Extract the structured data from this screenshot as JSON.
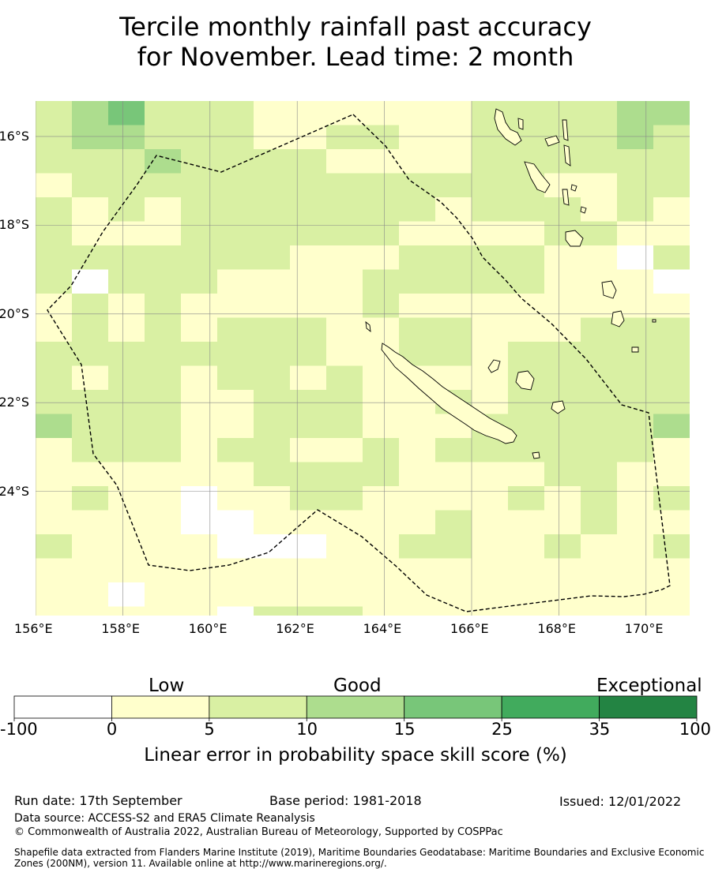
{
  "title_line1": "Tercile monthly rainfall past accuracy",
  "title_line2": "for November. Lead time: 2 month",
  "map": {
    "lon_range": [
      156,
      171
    ],
    "lat_range": [
      -26.8,
      -15.2
    ],
    "lon_ticks": [
      "156°E",
      "158°E",
      "160°E",
      "162°E",
      "164°E",
      "166°E",
      "168°E",
      "170°E"
    ],
    "lat_ticks": [
      "16°S",
      "18°S",
      "20°S",
      "22°S",
      "24°S"
    ],
    "gridlines": true,
    "boundary_line": "dashed",
    "colors": {
      "-100": "#ffffff",
      "0": "#ffffcc",
      "5": "#d9f0a3",
      "10": "#addd8e",
      "15": "#78c679",
      "25": "#41ab5d",
      "35": "#238443"
    }
  },
  "colorbar": {
    "category_labels": [
      "Low",
      "Good",
      "Exceptional"
    ],
    "boundaries": [
      "-100",
      "0",
      "5",
      "10",
      "15",
      "25",
      "35",
      "100"
    ],
    "colors": [
      "#ffffff",
      "#ffffcc",
      "#d9f0a3",
      "#addd8e",
      "#78c679",
      "#41ab5d",
      "#238443"
    ],
    "axis_label": "Linear error in probability space skill score (%)"
  },
  "footer": {
    "run_date": "Run date: 17th September",
    "base_period": "Base period: 1981-2018",
    "issued": "Issued: 12/01/2022",
    "data_source": "Data source: ACCESS-S2 and ERA5 Climate Reanalysis",
    "copyright": "© Commonwealth of Australia 2022, Australian Bureau of Meteorology, Supported by COSPPac",
    "shapefile": "Shapefile data extracted from Flanders Marine Institute (2019), Maritime Boundaries Geodatabase: Maritime Boundaries and Exclusive Economic Zones (200NM), version 11. Available online at http://www.marineregions.org/."
  }
}
